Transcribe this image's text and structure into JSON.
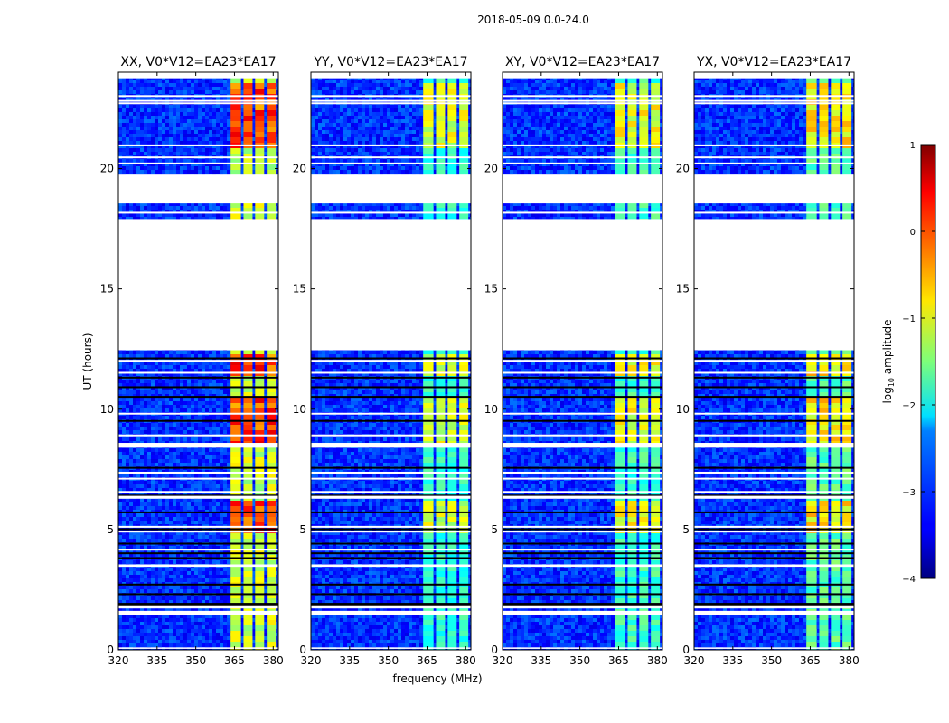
{
  "figure_title": "2018-05-09 0.0-24.0",
  "chart_data": {
    "type": "heatmap",
    "title": "2018-05-09 0.0-24.0",
    "xlabel": "frequency (MHz)",
    "ylabel": "UT (hours)",
    "xlim": [
      320,
      382
    ],
    "ylim": [
      0,
      24
    ],
    "x_ticks": [
      320,
      335,
      350,
      365,
      380
    ],
    "y_ticks": [
      0,
      5,
      10,
      15,
      20
    ],
    "colorbar": {
      "label": "log10 amplitude",
      "label_base": "log",
      "label_sub": "10",
      "label_rest": " amplitude",
      "range": [
        -4,
        1
      ],
      "ticks": [
        1,
        0,
        -1,
        -2,
        -3,
        -4
      ]
    },
    "panels": [
      {
        "title": "XX, V0*V12=EA23*EA17",
        "rfi_level": 0.82
      },
      {
        "title": "YY, V0*V12=EA23*EA17",
        "rfi_level": 0.6
      },
      {
        "title": "XY, V0*V12=EA23*EA17",
        "rfi_level": 0.62
      },
      {
        "title": "YX, V0*V12=EA23*EA17",
        "rfi_level": 0.66
      }
    ],
    "rfi_band_mhz": [
      363,
      380
    ],
    "rfi_subbands_mhz": [
      [
        363.5,
        367.5
      ],
      [
        368.5,
        372
      ],
      [
        373,
        376.5
      ],
      [
        377.5,
        381
      ]
    ],
    "flagged_gaps_ut": [
      [
        12.45,
        17.9
      ],
      [
        18.55,
        19.75
      ],
      [
        3.45,
        3.55
      ],
      [
        1.45,
        1.62
      ],
      [
        1.72,
        1.85
      ],
      [
        8.4,
        8.6
      ],
      [
        0.04,
        0.1
      ],
      [
        6.28,
        6.4
      ]
    ],
    "white_lines_ut": [
      23.05,
      22.85,
      22.75,
      21.0,
      20.5,
      20.25,
      18.2,
      12.05,
      11.55,
      9.85,
      8.95,
      7.4,
      7.15,
      6.6,
      5.15,
      4.95,
      4.2
    ],
    "dark_lines_ut": [
      12.15,
      11.35,
      10.95,
      10.55,
      9.55,
      7.6,
      6.45,
      5.75,
      5.05,
      4.45,
      4.05,
      3.85,
      2.75,
      2.35,
      1.95,
      1.9
    ]
  }
}
